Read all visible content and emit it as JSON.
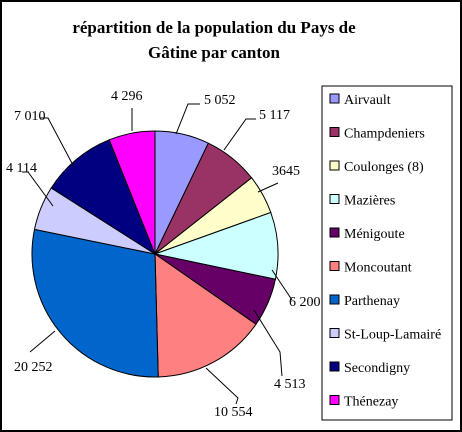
{
  "chart_data": {
    "type": "pie",
    "title_line1": "répartition de la population du Pays de",
    "title_line2": "Gâtine par canton",
    "categories": [
      "Airvault",
      "Champdeniers",
      "Coulonges (8)",
      "Mazières",
      "Ménigoute",
      "Moncoutant",
      "Parthenay",
      "St-Loup-Lamairé",
      "Secondigny",
      "Thénezay"
    ],
    "values": [
      5052,
      5117,
      3645,
      6200,
      4513,
      10554,
      20252,
      4114,
      7010,
      4296
    ],
    "data_labels": [
      "5 052",
      "5 117",
      "3645",
      "6 200",
      "4 513",
      "10 554",
      "20 252",
      "4 114",
      "7 010",
      "4 296"
    ],
    "colors": [
      "#9999ff",
      "#993366",
      "#ffffcc",
      "#ccffff",
      "#660066",
      "#ff8080",
      "#0066cc",
      "#ccccff",
      "#000080",
      "#ff00ff"
    ],
    "legend_position": "right"
  }
}
